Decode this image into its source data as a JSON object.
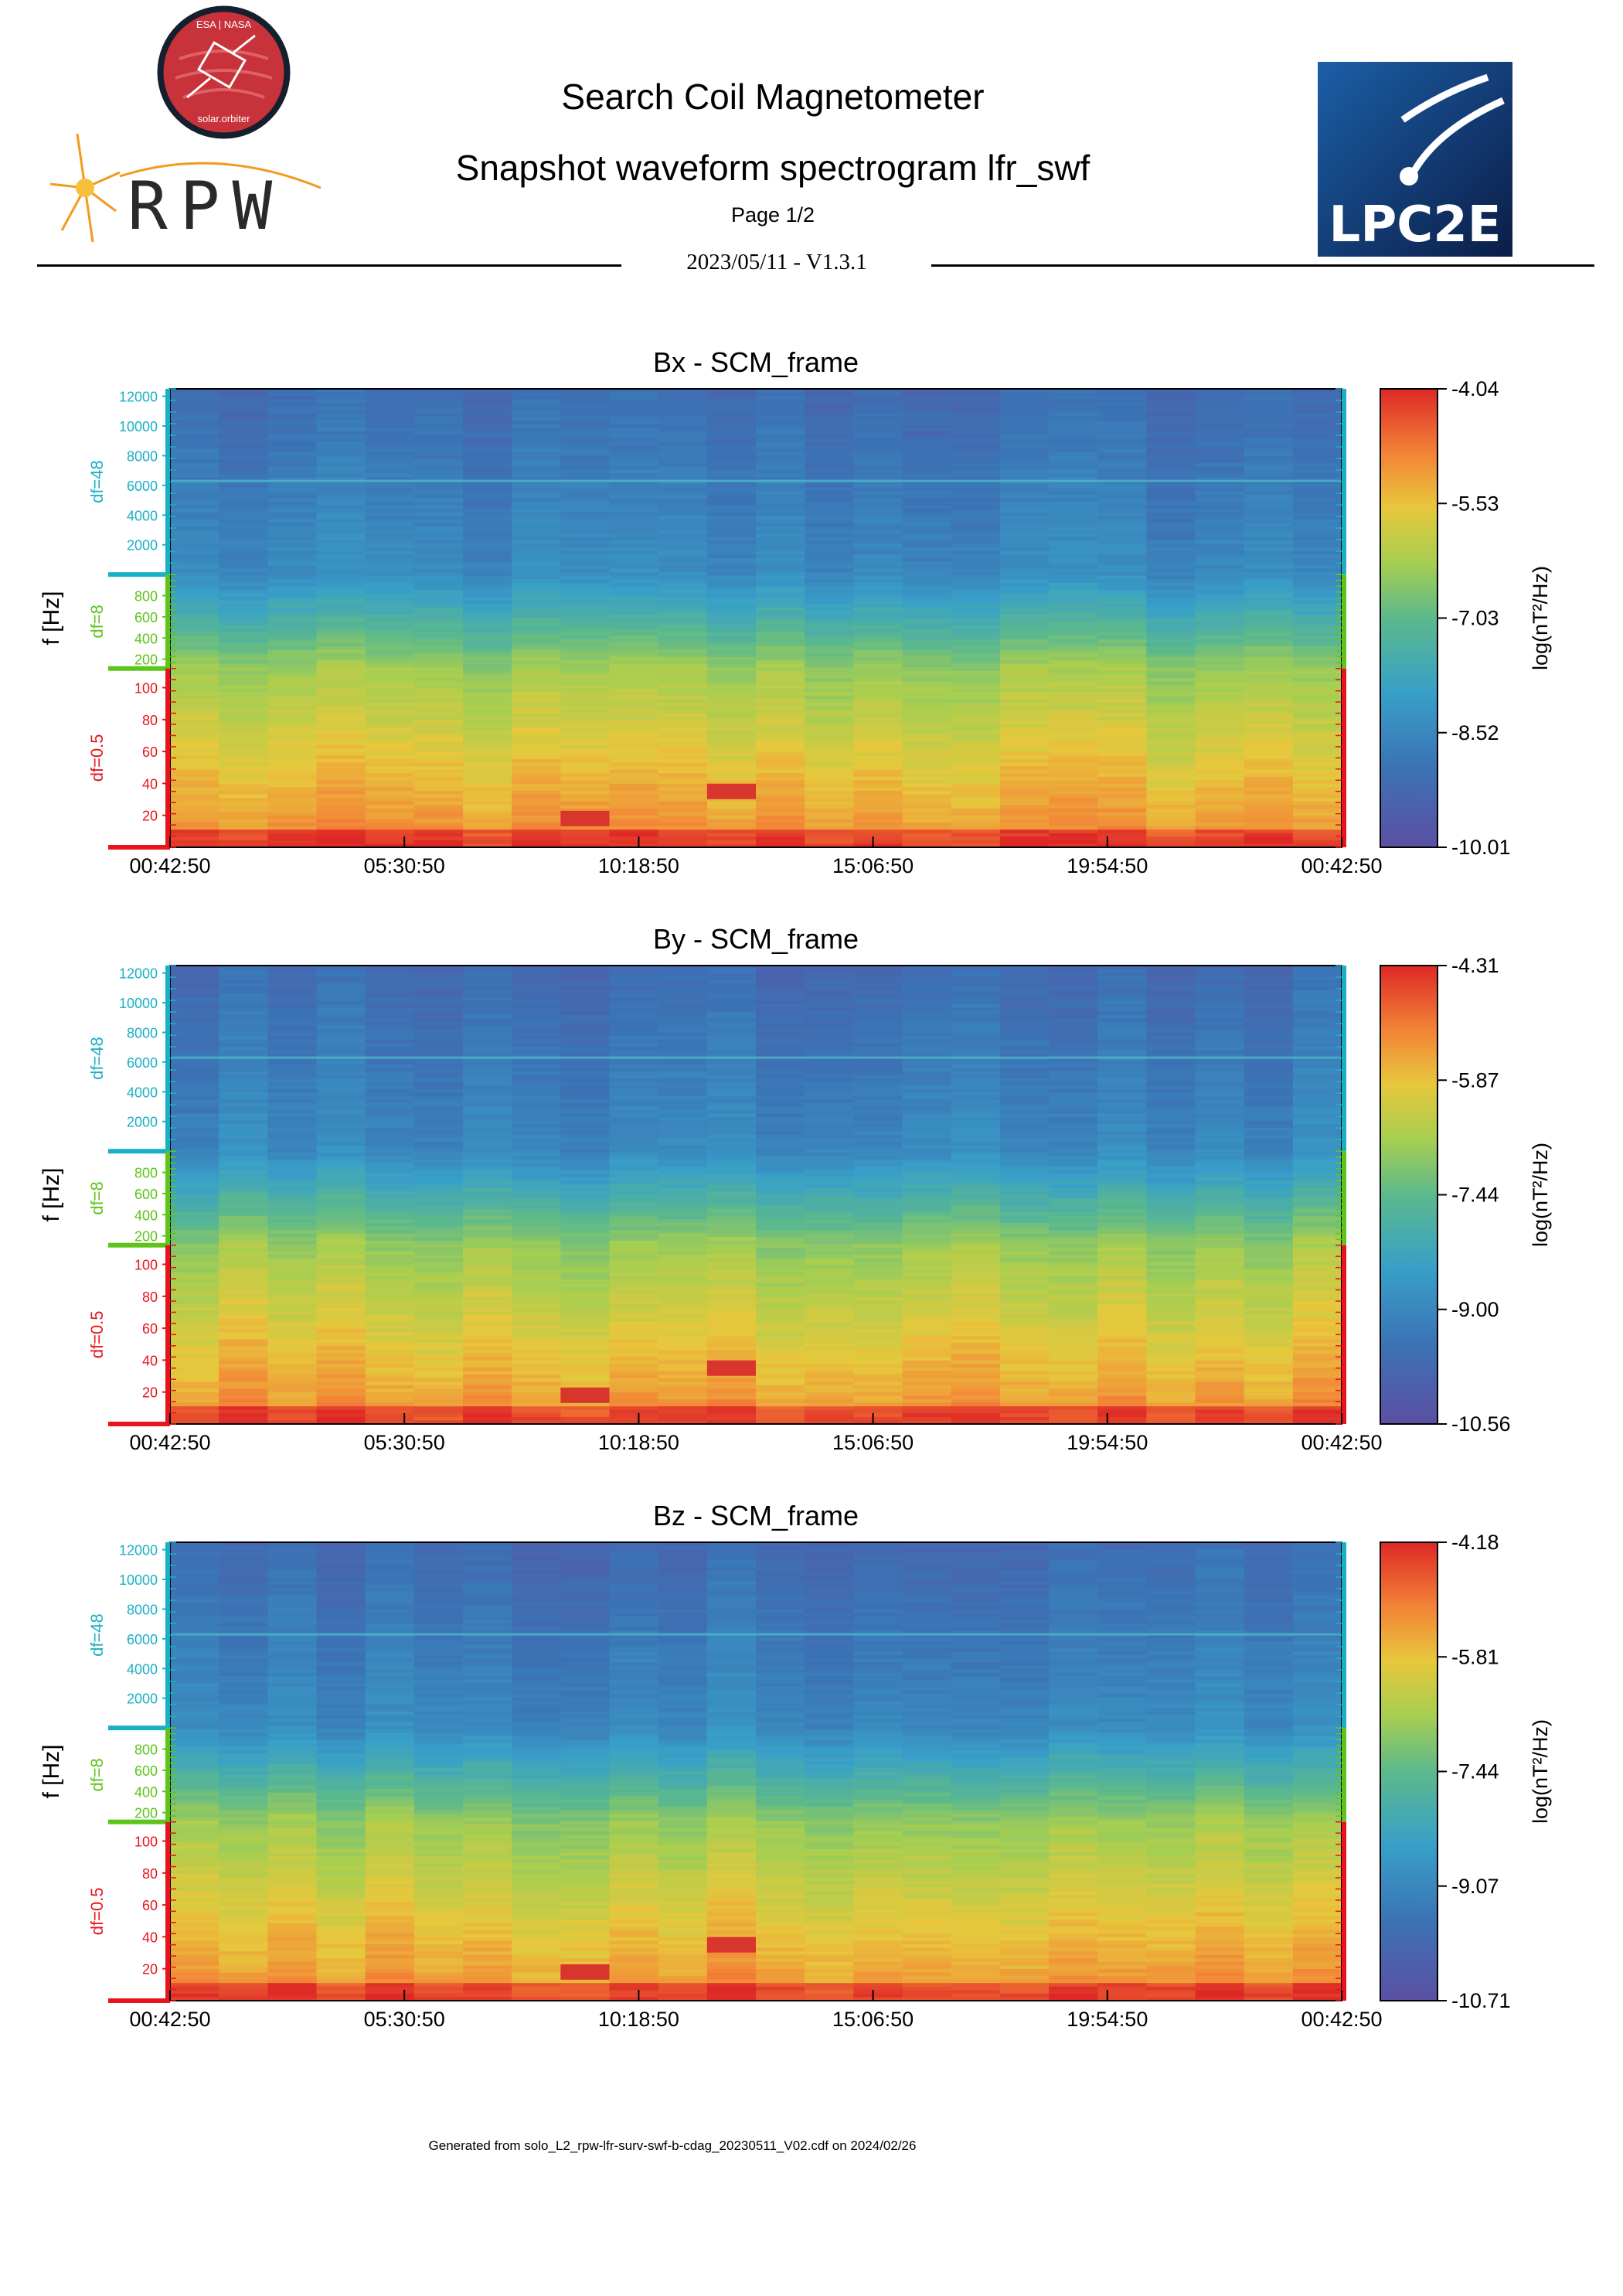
{
  "header": {
    "title": "Search Coil Magnetometer",
    "subtitle": "Snapshot waveform spectrogram lfr_swf",
    "page": "Page 1/2",
    "version": "2023/05/11 - V1.3.1"
  },
  "logos": {
    "solar_orbiter": {
      "top_text": "ESA | NASA",
      "bottom_text": "solar.orbiter"
    },
    "rpw": {
      "text": "RPW"
    },
    "lpc2e": {
      "text": "LPC2E"
    }
  },
  "footer": {
    "text": "Generated from solo_L2_rpw-lfr-surv-swf-b-cdag_20230511_V02.cdf on 2024/02/26"
  },
  "colors": {
    "band_df48": "#1ab0c4",
    "band_df8": "#5ec41a",
    "band_df05": "#e8141c"
  },
  "chart_data": [
    {
      "type": "heatmap",
      "title": "Bx - SCM_frame",
      "ylabel": "f [Hz]",
      "colorbar_label": "log(nT²/Hz)",
      "colorbar_ticks": [
        "-4.04",
        "-5.53",
        "-7.03",
        "-8.52",
        "-10.01"
      ],
      "clim": [
        -10.01,
        -4.04
      ],
      "x_ticks": [
        "00:42:50",
        "05:30:50",
        "10:18:50",
        "15:06:50",
        "19:54:50",
        "00:42:50"
      ],
      "bands": [
        {
          "label": "df=48",
          "ticks": [
            "12000",
            "10000",
            "8000",
            "6000",
            "4000",
            "2000"
          ]
        },
        {
          "label": "df=8",
          "ticks": [
            "800",
            "600",
            "400",
            "200"
          ]
        },
        {
          "label": "df=0.5",
          "ticks": [
            "100",
            "80",
            "60",
            "40",
            "20"
          ]
        }
      ],
      "features": {
        "line_hz": 6300,
        "bursts_hz": [
          18,
          35
        ]
      }
    },
    {
      "type": "heatmap",
      "title": "By - SCM_frame",
      "ylabel": "f [Hz]",
      "colorbar_label": "log(nT²/Hz)",
      "colorbar_ticks": [
        "-4.31",
        "-5.87",
        "-7.44",
        "-9.00",
        "-10.56"
      ],
      "clim": [
        -10.56,
        -4.31
      ],
      "x_ticks": [
        "00:42:50",
        "05:30:50",
        "10:18:50",
        "15:06:50",
        "19:54:50",
        "00:42:50"
      ],
      "bands": [
        {
          "label": "df=48",
          "ticks": [
            "12000",
            "10000",
            "8000",
            "6000",
            "4000",
            "2000"
          ]
        },
        {
          "label": "df=8",
          "ticks": [
            "800",
            "600",
            "400",
            "200"
          ]
        },
        {
          "label": "df=0.5",
          "ticks": [
            "100",
            "80",
            "60",
            "40",
            "20"
          ]
        }
      ],
      "features": {
        "line_hz": 6300,
        "bursts_hz": [
          18,
          35
        ]
      }
    },
    {
      "type": "heatmap",
      "title": "Bz - SCM_frame",
      "ylabel": "f [Hz]",
      "colorbar_label": "log(nT²/Hz)",
      "colorbar_ticks": [
        "-4.18",
        "-5.81",
        "-7.44",
        "-9.07",
        "-10.71"
      ],
      "clim": [
        -10.71,
        -4.18
      ],
      "x_ticks": [
        "00:42:50",
        "05:30:50",
        "10:18:50",
        "15:06:50",
        "19:54:50",
        "00:42:50"
      ],
      "bands": [
        {
          "label": "df=48",
          "ticks": [
            "12000",
            "10000",
            "8000",
            "6000",
            "4000",
            "2000"
          ]
        },
        {
          "label": "df=8",
          "ticks": [
            "800",
            "600",
            "400",
            "200"
          ]
        },
        {
          "label": "df=0.5",
          "ticks": [
            "100",
            "80",
            "60",
            "40",
            "20"
          ]
        }
      ],
      "features": {
        "line_hz": 6300,
        "bursts_hz": [
          18,
          35
        ]
      }
    }
  ]
}
